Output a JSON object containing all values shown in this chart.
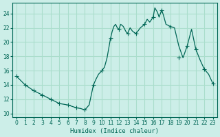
{
  "xlabel": "Humidex (Indice chaleur)",
  "ylabel": "",
  "bg_color": "#cceee8",
  "grid_color": "#aaddcc",
  "line_color": "#006655",
  "marker_color": "#006655",
  "xlim": [
    -0.5,
    23.5
  ],
  "ylim": [
    9.5,
    25.5
  ],
  "yticks": [
    10,
    12,
    14,
    16,
    18,
    20,
    22,
    24
  ],
  "xticks": [
    0,
    1,
    2,
    3,
    4,
    5,
    6,
    7,
    8,
    9,
    10,
    11,
    12,
    13,
    14,
    15,
    16,
    17,
    18,
    19,
    20,
    21,
    22,
    23
  ],
  "x": [
    0,
    1,
    2,
    3,
    4,
    5,
    6,
    7,
    7.5,
    8,
    8.5,
    9,
    9.3,
    9.6,
    10,
    10.3,
    10.6,
    11,
    11.2,
    11.4,
    11.6,
    11.8,
    12,
    12.2,
    12.5,
    12.8,
    13,
    13.3,
    13.6,
    14,
    14.5,
    15,
    15.3,
    15.6,
    16,
    16.2,
    16.5,
    16.7,
    17,
    17.2,
    17.5,
    18,
    18.5,
    19,
    19.5,
    20,
    20.5,
    21,
    21.5,
    22,
    22.5,
    23
  ],
  "y": [
    15.2,
    14.0,
    13.2,
    12.6,
    12.0,
    11.4,
    11.2,
    10.8,
    10.7,
    10.5,
    11.2,
    14.0,
    14.8,
    15.5,
    16.0,
    16.5,
    17.8,
    20.5,
    21.5,
    22.2,
    22.5,
    22.0,
    21.8,
    22.5,
    22.2,
    21.5,
    21.2,
    22.0,
    21.5,
    21.2,
    22.0,
    22.5,
    23.2,
    22.8,
    23.5,
    24.8,
    24.2,
    23.5,
    24.5,
    23.8,
    22.5,
    22.2,
    22.0,
    19.5,
    17.8,
    19.5,
    21.8,
    19.0,
    17.5,
    16.2,
    15.5,
    14.2
  ],
  "marker_x": [
    0,
    1,
    2,
    3,
    4,
    5,
    6,
    7,
    8,
    9,
    10,
    11,
    12,
    13,
    14,
    15,
    16,
    17,
    18,
    19,
    20,
    21,
    22,
    23
  ],
  "marker_y": [
    15.2,
    14.0,
    13.2,
    12.6,
    12.0,
    11.4,
    11.2,
    10.8,
    10.5,
    14.0,
    16.0,
    20.5,
    21.8,
    21.2,
    21.2,
    22.5,
    23.5,
    24.5,
    22.2,
    17.8,
    19.5,
    19.0,
    16.2,
    14.2
  ]
}
